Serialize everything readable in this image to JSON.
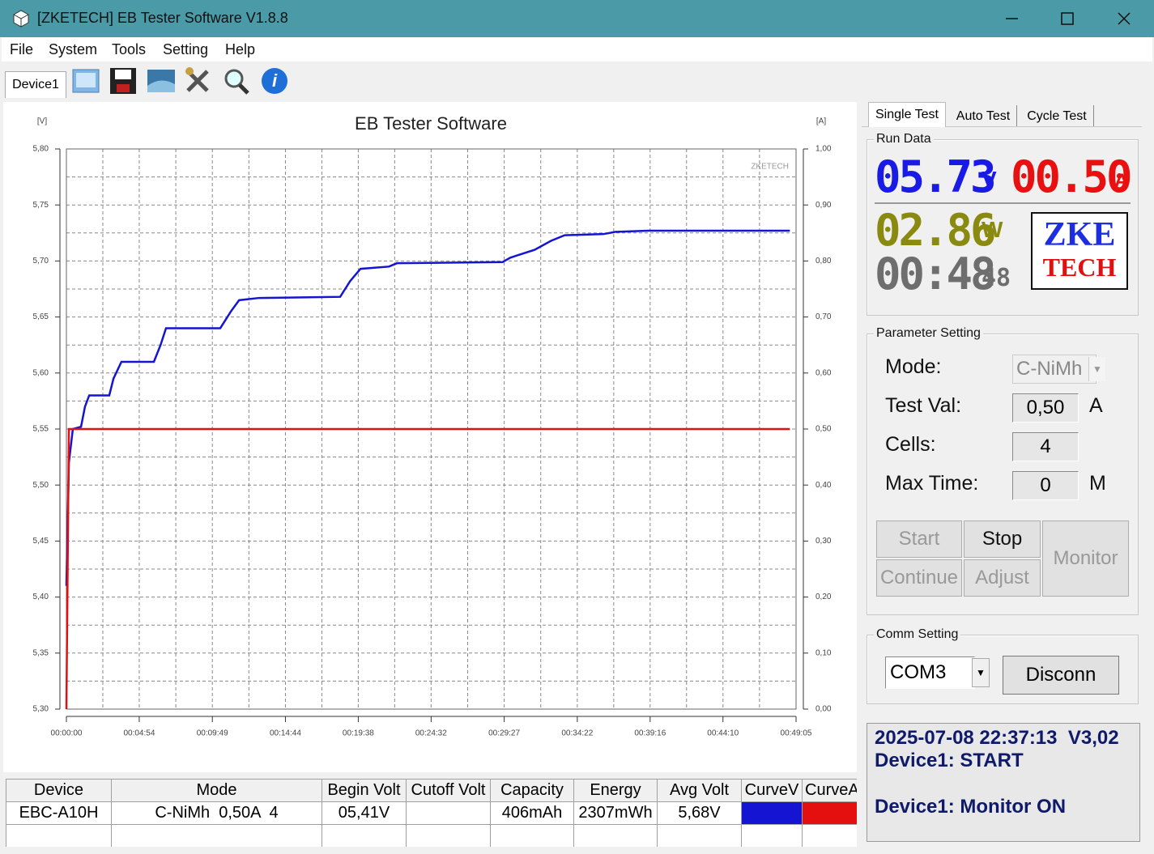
{
  "window": {
    "title": "[ZKETECH] EB Tester Software V1.8.8"
  },
  "menu": [
    "File",
    "System",
    "Tools",
    "Setting",
    "Help"
  ],
  "device_tab": "Device1",
  "chart_data": {
    "type": "line",
    "title": "EB Tester Software",
    "y_label": "[V]",
    "y2_label": "[A]",
    "watermark": "ZKETECH",
    "x": [
      0,
      10,
      26,
      59,
      75,
      92,
      173,
      190,
      222,
      353,
      380,
      402,
      621,
      664,
      697,
      778,
      1105,
      1145,
      1187,
      1302,
      1334,
      1760,
      1792,
      1890,
      1956,
      2011,
      2168,
      2217,
      2348,
      2920
    ],
    "xlim": [
      0,
      2945
    ],
    "xticks": [
      {
        "value": 0,
        "label": "00:00:00"
      },
      {
        "value": 294,
        "label": "00:04:54"
      },
      {
        "value": 589,
        "label": "00:09:49"
      },
      {
        "value": 884,
        "label": "00:14:44"
      },
      {
        "value": 1178,
        "label": "00:19:38"
      },
      {
        "value": 1472,
        "label": "00:24:32"
      },
      {
        "value": 1767,
        "label": "00:29:27"
      },
      {
        "value": 2062,
        "label": "00:34:22"
      },
      {
        "value": 2356,
        "label": "00:39:16"
      },
      {
        "value": 2650,
        "label": "00:44:10"
      },
      {
        "value": 2945,
        "label": "00:49:05"
      }
    ],
    "ylim": [
      5.3,
      5.8
    ],
    "yticks": [
      {
        "value": 5.3,
        "label": "5,30"
      },
      {
        "value": 5.35,
        "label": "5,35"
      },
      {
        "value": 5.4,
        "label": "5,40"
      },
      {
        "value": 5.45,
        "label": "5,45"
      },
      {
        "value": 5.5,
        "label": "5,50"
      },
      {
        "value": 5.55,
        "label": "5,55"
      },
      {
        "value": 5.6,
        "label": "5,60"
      },
      {
        "value": 5.65,
        "label": "5,65"
      },
      {
        "value": 5.7,
        "label": "5,70"
      },
      {
        "value": 5.75,
        "label": "5,75"
      },
      {
        "value": 5.8,
        "label": "5,80"
      }
    ],
    "y2lim": [
      0,
      1
    ],
    "y2ticks": [
      {
        "value": 0,
        "label": "0,00"
      },
      {
        "value": 0.1,
        "label": "0,10"
      },
      {
        "value": 0.2,
        "label": "0,20"
      },
      {
        "value": 0.3,
        "label": "0,30"
      },
      {
        "value": 0.4,
        "label": "0,40"
      },
      {
        "value": 0.5,
        "label": "0,50"
      },
      {
        "value": 0.6,
        "label": "0,60"
      },
      {
        "value": 0.7,
        "label": "0,70"
      },
      {
        "value": 0.8,
        "label": "0,80"
      },
      {
        "value": 0.9,
        "label": "0,90"
      },
      {
        "value": 1,
        "label": "1,00"
      }
    ],
    "grid": true,
    "series": [
      {
        "name": "CurveV",
        "color": "#1414d2",
        "values": [
          5.41,
          5.52,
          5.55,
          5.552,
          5.57,
          5.58,
          5.58,
          5.595,
          5.61,
          5.61,
          5.625,
          5.64,
          5.64,
          5.655,
          5.665,
          5.667,
          5.668,
          5.682,
          5.693,
          5.695,
          5.698,
          5.699,
          5.703,
          5.71,
          5.718,
          5.723,
          5.724,
          5.726,
          5.727,
          5.727
        ]
      },
      {
        "name": "CurveA",
        "color": "#e41010",
        "axis": "y2",
        "values": [
          0,
          0.5,
          0.5,
          0.5,
          0.5,
          0.5,
          0.5,
          0.5,
          0.5,
          0.5,
          0.5,
          0.5,
          0.5,
          0.5,
          0.5,
          0.5,
          0.5,
          0.5,
          0.5,
          0.5,
          0.5,
          0.5,
          0.5,
          0.5,
          0.5,
          0.5,
          0.5,
          0.5,
          0.5,
          0.5
        ]
      }
    ]
  },
  "tabs": [
    "Single Test",
    "Auto Test",
    "Cycle Test"
  ],
  "run_data": {
    "title": "Run Data",
    "voltage": "05.73",
    "voltage_unit": "V",
    "current": "00.50",
    "current_unit": "A",
    "power": "02.86",
    "power_unit": "W",
    "time": "00:48",
    "time_seconds": "48",
    "logo": [
      "ZKE",
      "TECH"
    ]
  },
  "parameter_setting": {
    "title": "Parameter Setting",
    "fields": [
      {
        "label": "Mode:",
        "value": "C-NiMh"
      },
      {
        "label": "Test Val:",
        "value": "0,50",
        "unit": "A"
      },
      {
        "label": "Cells:",
        "value": "4"
      },
      {
        "label": "Max Time:",
        "value": "0",
        "unit": "M"
      }
    ],
    "buttons": [
      {
        "label": "Start",
        "enabled": false
      },
      {
        "label": "Stop",
        "enabled": true
      },
      {
        "label": "Monitor",
        "enabled": false
      },
      {
        "label": "Continue",
        "enabled": false
      },
      {
        "label": "Adjust",
        "enabled": false
      }
    ]
  },
  "comm_setting": {
    "title": "Comm Setting",
    "port": "COM3",
    "button": "Disconn"
  },
  "log": [
    "2025-07-08 22:37:13  V3,02",
    "Device1: START",
    "Device1: Monitor ON"
  ],
  "table": {
    "headers": [
      "Device",
      "Mode",
      "Begin Volt",
      "Cutoff Volt",
      "Capacity",
      "Energy",
      "Avg Volt"
    ],
    "rows": [
      [
        "EBC-A10H",
        "C-NiMh  0,50A  4",
        "05,41V",
        null,
        "406mAh",
        "2307mWh",
        "5,68V"
      ]
    ]
  }
}
